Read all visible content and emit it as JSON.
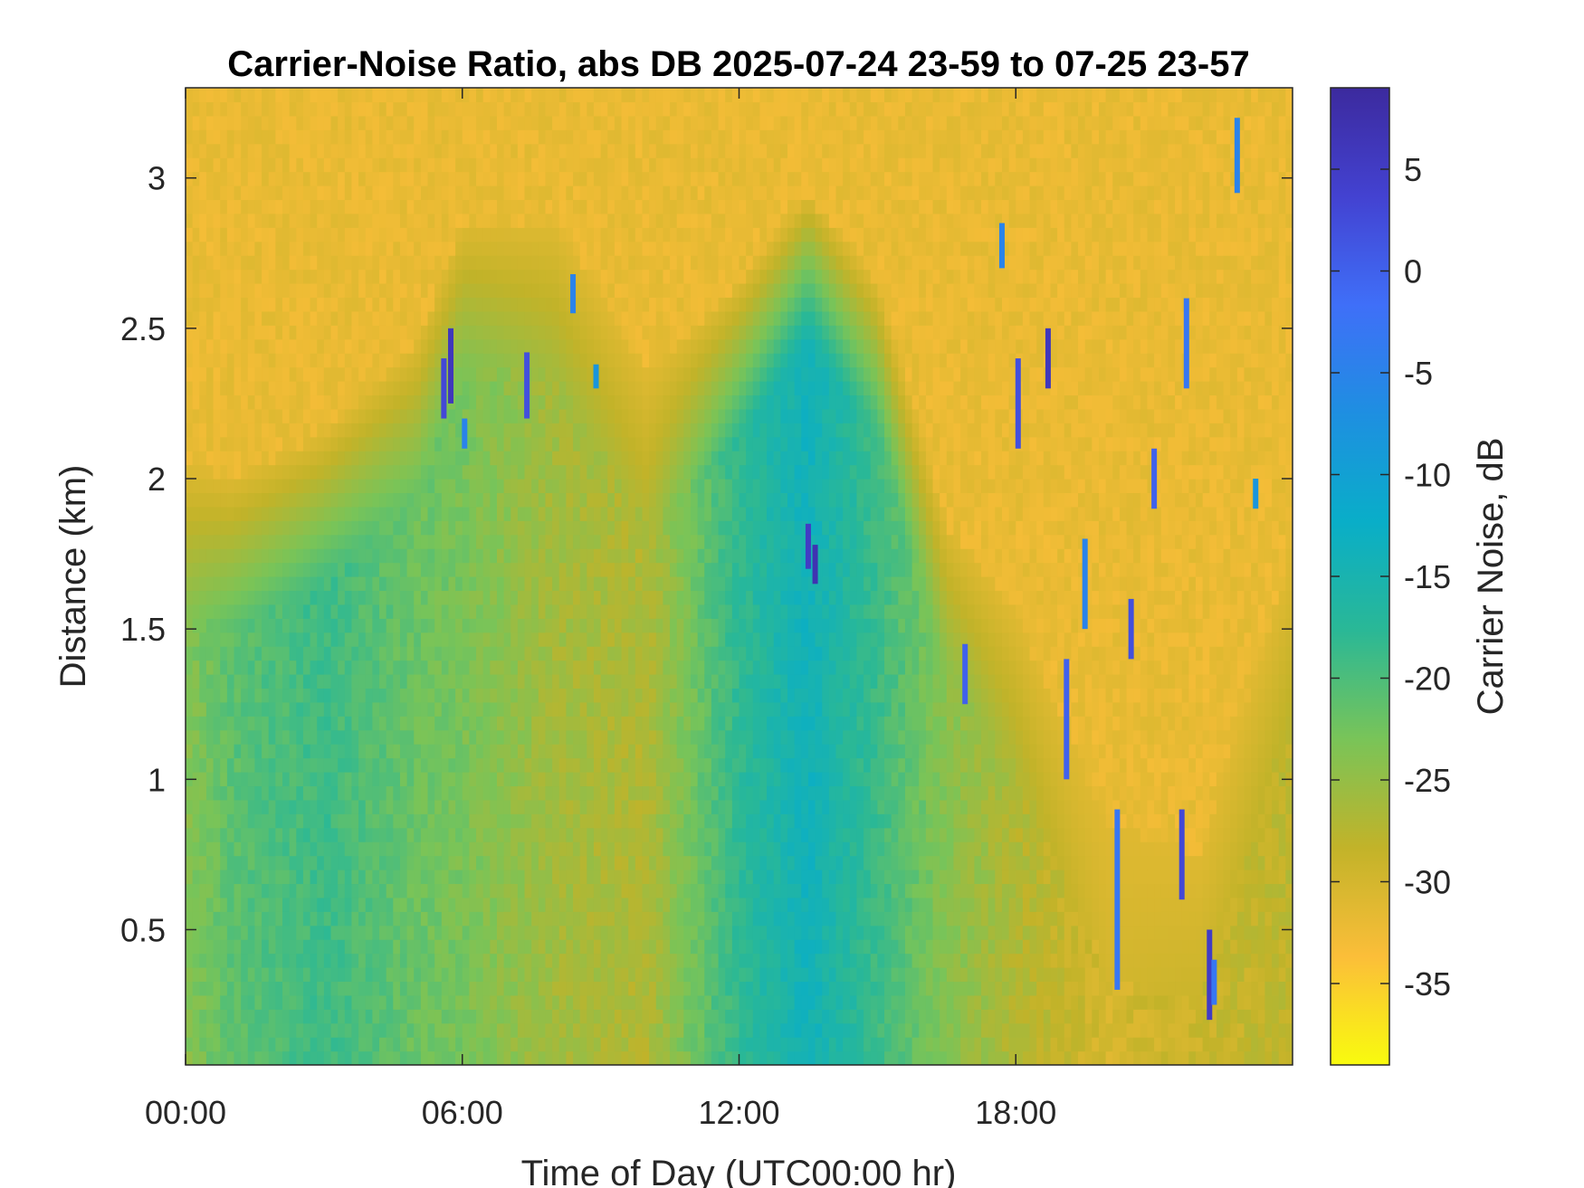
{
  "chart_data": {
    "type": "heatmap",
    "title": "Carrier-Noise Ratio, abs DB 2025-07-24 23-59 to 07-25 23-57",
    "xlabel": "Time of Day (UTC00:00 hr)",
    "ylabel": "Distance (km)",
    "colorbar_label": "Carrier Noise, dB",
    "x_range_hours": [
      0,
      24
    ],
    "y_range_km": [
      0.05,
      3.3
    ],
    "color_range_db": [
      -39,
      9
    ],
    "x_ticks": [
      {
        "value": 0,
        "label": "00:00"
      },
      {
        "value": 6,
        "label": "06:00"
      },
      {
        "value": 12,
        "label": "12:00"
      },
      {
        "value": 18,
        "label": "18:00"
      }
    ],
    "y_ticks": [
      {
        "value": 0.5,
        "label": "0.5"
      },
      {
        "value": 1,
        "label": "1"
      },
      {
        "value": 1.5,
        "label": "1.5"
      },
      {
        "value": 2,
        "label": "2"
      },
      {
        "value": 2.5,
        "label": "2.5"
      },
      {
        "value": 3,
        "label": "3"
      }
    ],
    "colorbar_ticks": [
      {
        "value": 5,
        "label": "5"
      },
      {
        "value": 0,
        "label": "0"
      },
      {
        "value": -5,
        "label": "-5"
      },
      {
        "value": -10,
        "label": "-10"
      },
      {
        "value": -15,
        "label": "-15"
      },
      {
        "value": -20,
        "label": "-20"
      },
      {
        "value": -25,
        "label": "-25"
      },
      {
        "value": -30,
        "label": "-30"
      },
      {
        "value": -35,
        "label": "-35"
      }
    ],
    "colormap": "parula",
    "colormap_stops": [
      "#f9fb0e",
      "#fbbe39",
      "#c2b329",
      "#79c458",
      "#2ab896",
      "#09aec8",
      "#1e8fe1",
      "#3f6ff8",
      "#4342d1",
      "#3c2a9e"
    ],
    "region_values": [
      {
        "t": 0,
        "base": -24,
        "transition_km": 1.8
      },
      {
        "t": 1,
        "base": -21,
        "transition_km": 1.75
      },
      {
        "t": 3,
        "base": -19,
        "transition_km": 1.9
      },
      {
        "t": 5,
        "base": -22,
        "transition_km": 2.2
      },
      {
        "t": 6,
        "base": -23,
        "transition_km": 2.6
      },
      {
        "t": 8,
        "base": -26,
        "transition_km": 2.6
      },
      {
        "t": 10,
        "base": -27,
        "transition_km": 2.1
      },
      {
        "t": 12,
        "base": -18,
        "transition_km": 2.4
      },
      {
        "t": 13.5,
        "base": -14,
        "transition_km": 2.7
      },
      {
        "t": 15,
        "base": -19,
        "transition_km": 2.4
      },
      {
        "t": 16.5,
        "base": -24,
        "transition_km": 1.6
      },
      {
        "t": 18,
        "base": -27,
        "transition_km": 1.3
      },
      {
        "t": 20,
        "base": -30,
        "transition_km": 0.6
      },
      {
        "t": 22,
        "base": -29,
        "transition_km": 0.5
      },
      {
        "t": 24,
        "base": -28,
        "transition_km": 1.5
      }
    ],
    "spikes": [
      {
        "t": 5.6,
        "y0": 2.2,
        "y1": 2.4,
        "db": 3
      },
      {
        "t": 5.75,
        "y0": 2.25,
        "y1": 2.5,
        "db": 6
      },
      {
        "t": 6.05,
        "y0": 2.1,
        "y1": 2.2,
        "db": -5
      },
      {
        "t": 7.4,
        "y0": 2.2,
        "y1": 2.42,
        "db": 2
      },
      {
        "t": 8.4,
        "y0": 2.55,
        "y1": 2.68,
        "db": -5
      },
      {
        "t": 8.9,
        "y0": 2.3,
        "y1": 2.38,
        "db": -8
      },
      {
        "t": 13.5,
        "y0": 1.7,
        "y1": 1.85,
        "db": 5
      },
      {
        "t": 13.65,
        "y0": 1.65,
        "y1": 1.78,
        "db": 7
      },
      {
        "t": 16.9,
        "y0": 1.25,
        "y1": 1.45,
        "db": 0
      },
      {
        "t": 17.7,
        "y0": 2.7,
        "y1": 2.85,
        "db": -5
      },
      {
        "t": 18.05,
        "y0": 2.1,
        "y1": 2.4,
        "db": 2
      },
      {
        "t": 18.7,
        "y0": 2.3,
        "y1": 2.5,
        "db": 6
      },
      {
        "t": 19.1,
        "y0": 1.0,
        "y1": 1.4,
        "db": 0
      },
      {
        "t": 19.5,
        "y0": 1.5,
        "y1": 1.8,
        "db": -5
      },
      {
        "t": 20.2,
        "y0": 0.3,
        "y1": 0.9,
        "db": -3
      },
      {
        "t": 20.5,
        "y0": 1.4,
        "y1": 1.6,
        "db": 2
      },
      {
        "t": 21.0,
        "y0": 1.9,
        "y1": 2.1,
        "db": 0
      },
      {
        "t": 21.6,
        "y0": 0.6,
        "y1": 0.9,
        "db": 3
      },
      {
        "t": 21.7,
        "y0": 2.3,
        "y1": 2.6,
        "db": -3
      },
      {
        "t": 22.2,
        "y0": 0.2,
        "y1": 0.5,
        "db": 5
      },
      {
        "t": 22.3,
        "y0": 0.25,
        "y1": 0.4,
        "db": -3
      },
      {
        "t": 22.8,
        "y0": 2.95,
        "y1": 3.2,
        "db": -5
      },
      {
        "t": 23.2,
        "y0": 1.9,
        "y1": 2.0,
        "db": -8
      }
    ]
  }
}
